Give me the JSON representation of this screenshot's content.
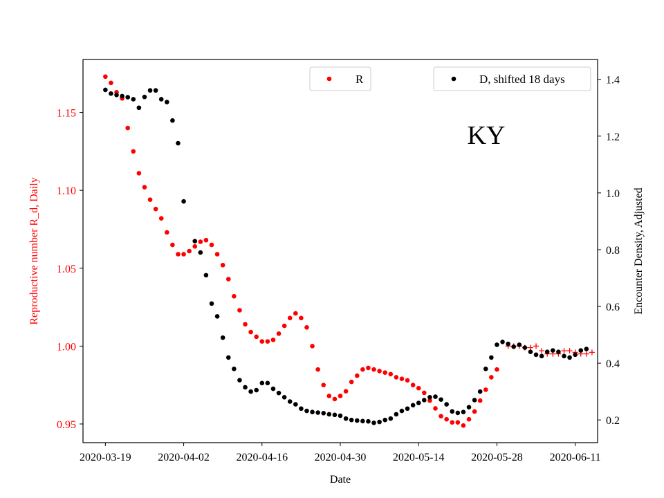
{
  "chart_data": {
    "type": "scatter",
    "annotation": "KY",
    "xlabel": "Date",
    "ylabel_left": "Reproductive number R_d, Daily",
    "ylabel_right": "Encounter Density, Adjusted",
    "x_ticks": [
      "2020-03-19",
      "2020-04-02",
      "2020-04-16",
      "2020-04-30",
      "2020-05-14",
      "2020-05-28",
      "2020-06-11"
    ],
    "y_left_ticks": [
      "0.95",
      "1.00",
      "1.05",
      "1.10",
      "1.15"
    ],
    "y_right_ticks": [
      "0.2",
      "0.4",
      "0.6",
      "0.8",
      "1.0",
      "1.2",
      "1.4"
    ],
    "x_range": [
      "2020-03-15",
      "2020-06-15"
    ],
    "y_left_range": [
      0.938,
      1.184
    ],
    "y_right_range": [
      0.12,
      1.47
    ],
    "legend": [
      {
        "label": "R",
        "color": "#ff0000",
        "placement": "top-center"
      },
      {
        "label": "D, shifted 18 days",
        "color": "#000000",
        "placement": "top-right"
      }
    ],
    "colors": {
      "R": "#ff0000",
      "D": "#000000",
      "R_forecast": "#ff0000"
    },
    "series": [
      {
        "name": "R",
        "axis": "left",
        "marker": "dot",
        "x": [
          "2020-03-19",
          "2020-03-20",
          "2020-03-21",
          "2020-03-22",
          "2020-03-23",
          "2020-03-24",
          "2020-03-25",
          "2020-03-26",
          "2020-03-27",
          "2020-03-28",
          "2020-03-29",
          "2020-03-30",
          "2020-03-31",
          "2020-04-01",
          "2020-04-02",
          "2020-04-03",
          "2020-04-04",
          "2020-04-05",
          "2020-04-06",
          "2020-04-07",
          "2020-04-08",
          "2020-04-09",
          "2020-04-10",
          "2020-04-11",
          "2020-04-12",
          "2020-04-13",
          "2020-04-14",
          "2020-04-15",
          "2020-04-16",
          "2020-04-17",
          "2020-04-18",
          "2020-04-19",
          "2020-04-20",
          "2020-04-21",
          "2020-04-22",
          "2020-04-23",
          "2020-04-24",
          "2020-04-25",
          "2020-04-26",
          "2020-04-27",
          "2020-04-28",
          "2020-04-29",
          "2020-04-30",
          "2020-05-01",
          "2020-05-02",
          "2020-05-03",
          "2020-05-04",
          "2020-05-05",
          "2020-05-06",
          "2020-05-07",
          "2020-05-08",
          "2020-05-09",
          "2020-05-10",
          "2020-05-11",
          "2020-05-12",
          "2020-05-13",
          "2020-05-14",
          "2020-05-15",
          "2020-05-16",
          "2020-05-17",
          "2020-05-18",
          "2020-05-19",
          "2020-05-20",
          "2020-05-21",
          "2020-05-22",
          "2020-05-23",
          "2020-05-24",
          "2020-05-25",
          "2020-05-26",
          "2020-05-27",
          "2020-05-28"
        ],
        "y": [
          1.173,
          1.169,
          1.163,
          1.159,
          1.14,
          1.125,
          1.111,
          1.102,
          1.094,
          1.088,
          1.082,
          1.073,
          1.065,
          1.059,
          1.059,
          1.061,
          1.064,
          1.067,
          1.068,
          1.065,
          1.059,
          1.052,
          1.043,
          1.032,
          1.023,
          1.014,
          1.009,
          1.006,
          1.003,
          1.003,
          1.004,
          1.008,
          1.013,
          1.018,
          1.021,
          1.018,
          1.012,
          1.0,
          0.985,
          0.975,
          0.968,
          0.966,
          0.968,
          0.971,
          0.977,
          0.981,
          0.985,
          0.986,
          0.985,
          0.984,
          0.983,
          0.982,
          0.98,
          0.979,
          0.978,
          0.975,
          0.973,
          0.97,
          0.965,
          0.96,
          0.955,
          0.953,
          0.951,
          0.951,
          0.949,
          0.953,
          0.958,
          0.965,
          0.972,
          0.98,
          0.985
        ]
      },
      {
        "name": "R_forecast",
        "axis": "left",
        "marker": "plus",
        "x": [
          "2020-05-30",
          "2020-05-31",
          "2020-06-01",
          "2020-06-02",
          "2020-06-03",
          "2020-06-04",
          "2020-06-05",
          "2020-06-06",
          "2020-06-07",
          "2020-06-08",
          "2020-06-09",
          "2020-06-10",
          "2020-06-11",
          "2020-06-12",
          "2020-06-13",
          "2020-06-14"
        ],
        "y": [
          1.0,
          1.0,
          1.0,
          0.999,
          0.999,
          1.0,
          0.997,
          0.995,
          0.995,
          0.995,
          0.997,
          0.997,
          0.996,
          0.995,
          0.995,
          0.996
        ]
      },
      {
        "name": "D, shifted 18 days",
        "axis": "right",
        "marker": "dot",
        "x": [
          "2020-03-19",
          "2020-03-20",
          "2020-03-21",
          "2020-03-22",
          "2020-03-23",
          "2020-03-24",
          "2020-03-25",
          "2020-03-26",
          "2020-03-27",
          "2020-03-28",
          "2020-03-29",
          "2020-03-30",
          "2020-03-31",
          "2020-04-01",
          "2020-04-02",
          "2020-04-04",
          "2020-04-05",
          "2020-04-06",
          "2020-04-07",
          "2020-04-08",
          "2020-04-09",
          "2020-04-10",
          "2020-04-11",
          "2020-04-12",
          "2020-04-13",
          "2020-04-14",
          "2020-04-15",
          "2020-04-16",
          "2020-04-17",
          "2020-04-18",
          "2020-04-19",
          "2020-04-20",
          "2020-04-21",
          "2020-04-22",
          "2020-04-23",
          "2020-04-24",
          "2020-04-25",
          "2020-04-26",
          "2020-04-27",
          "2020-04-28",
          "2020-04-29",
          "2020-04-30",
          "2020-05-01",
          "2020-05-02",
          "2020-05-03",
          "2020-05-04",
          "2020-05-05",
          "2020-05-06",
          "2020-05-07",
          "2020-05-08",
          "2020-05-09",
          "2020-05-10",
          "2020-05-11",
          "2020-05-12",
          "2020-05-13",
          "2020-05-14",
          "2020-05-15",
          "2020-05-16",
          "2020-05-17",
          "2020-05-18",
          "2020-05-19",
          "2020-05-20",
          "2020-05-21",
          "2020-05-22",
          "2020-05-23",
          "2020-05-24",
          "2020-05-25",
          "2020-05-26",
          "2020-05-27",
          "2020-05-28",
          "2020-05-29",
          "2020-05-30",
          "2020-05-31",
          "2020-06-01",
          "2020-06-02",
          "2020-06-03",
          "2020-06-04",
          "2020-06-05",
          "2020-06-06",
          "2020-06-07",
          "2020-06-08",
          "2020-06-09",
          "2020-06-10",
          "2020-06-11",
          "2020-06-12",
          "2020-06-13"
        ],
        "y": [
          1.363,
          1.35,
          1.345,
          1.341,
          1.337,
          1.33,
          1.3,
          1.338,
          1.361,
          1.361,
          1.33,
          1.32,
          1.255,
          1.175,
          0.97,
          0.83,
          0.79,
          0.71,
          0.61,
          0.565,
          0.49,
          0.42,
          0.38,
          0.34,
          0.315,
          0.3,
          0.305,
          0.33,
          0.33,
          0.31,
          0.295,
          0.28,
          0.265,
          0.255,
          0.24,
          0.232,
          0.228,
          0.226,
          0.224,
          0.22,
          0.218,
          0.215,
          0.205,
          0.2,
          0.198,
          0.196,
          0.195,
          0.19,
          0.193,
          0.2,
          0.205,
          0.22,
          0.232,
          0.24,
          0.252,
          0.26,
          0.27,
          0.28,
          0.282,
          0.272,
          0.255,
          0.23,
          0.225,
          0.228,
          0.245,
          0.27,
          0.3,
          0.38,
          0.42,
          0.465,
          0.475,
          0.468,
          0.458,
          0.465,
          0.455,
          0.44,
          0.43,
          0.425,
          0.44,
          0.445,
          0.44,
          0.425,
          0.42,
          0.43,
          0.445,
          0.45
        ]
      }
    ]
  }
}
